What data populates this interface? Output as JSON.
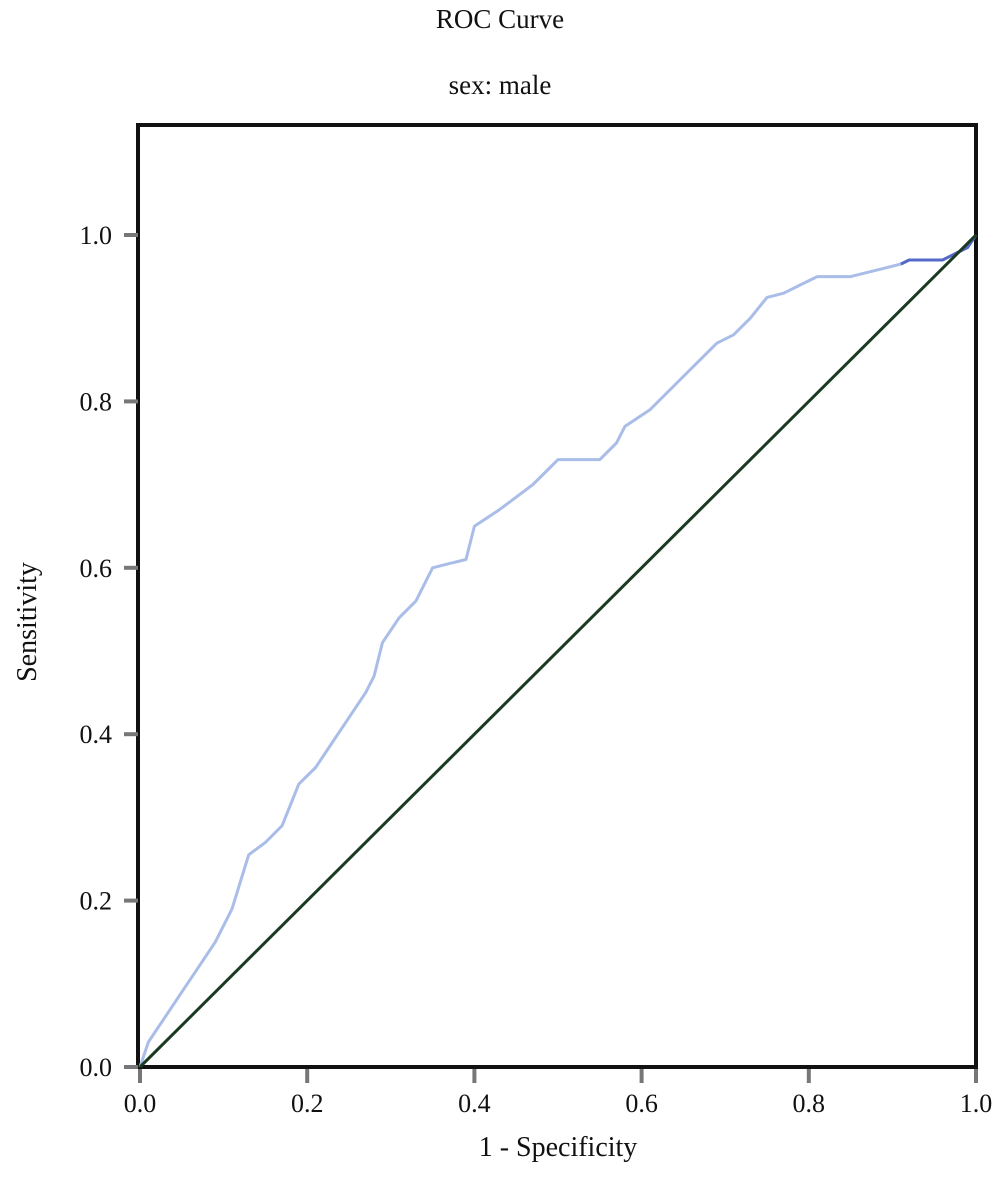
{
  "chart_data": {
    "type": "line",
    "title": "ROC Curve",
    "subtitle": "sex: male",
    "xlabel": "1 - Specificity",
    "ylabel": "Sensitivity",
    "xlim": [
      0,
      1
    ],
    "ylim": [
      0,
      1.13
    ],
    "xticks": [
      "0.0",
      "0.2",
      "0.4",
      "0.6",
      "0.8",
      "1.0"
    ],
    "yticks": [
      "0.0",
      "0.2",
      "0.4",
      "0.6",
      "0.8",
      "1.0"
    ],
    "grid": false,
    "series": [
      {
        "color": "#a9bde8",
        "x": [
          0,
          0.01,
          0.03,
          0.05,
          0.07,
          0.09,
          0.11,
          0.13,
          0.15,
          0.17,
          0.19,
          0.21,
          0.23,
          0.25,
          0.27,
          0.28,
          0.29,
          0.31,
          0.33,
          0.35,
          0.37,
          0.39,
          0.4,
          0.43,
          0.47,
          0.49,
          0.5,
          0.52,
          0.55,
          0.57,
          0.58,
          0.61,
          0.63,
          0.65,
          0.67,
          0.69,
          0.71,
          0.73,
          0.75,
          0.77,
          0.79,
          0.81,
          0.83,
          0.85,
          0.87,
          0.89,
          0.91
        ],
        "y": [
          0,
          0.03,
          0.06,
          0.09,
          0.12,
          0.15,
          0.19,
          0.255,
          0.27,
          0.29,
          0.34,
          0.36,
          0.39,
          0.42,
          0.45,
          0.47,
          0.51,
          0.54,
          0.56,
          0.6,
          0.605,
          0.61,
          0.65,
          0.67,
          0.7,
          0.72,
          0.73,
          0.73,
          0.73,
          0.75,
          0.77,
          0.79,
          0.81,
          0.83,
          0.85,
          0.87,
          0.88,
          0.9,
          0.925,
          0.93,
          0.94,
          0.95,
          0.95,
          0.95,
          0.955,
          0.96,
          0.965
        ]
      },
      {
        "color": "#5468c8",
        "x": [
          0.91,
          0.92,
          0.95,
          0.96,
          0.97,
          0.98,
          0.99,
          1.0
        ],
        "y": [
          0.965,
          0.97,
          0.97,
          0.97,
          0.975,
          0.98,
          0.985,
          1.0
        ]
      },
      {
        "color": "#1b3a22",
        "x": [
          0,
          1
        ],
        "y": [
          0,
          1
        ]
      }
    ]
  }
}
